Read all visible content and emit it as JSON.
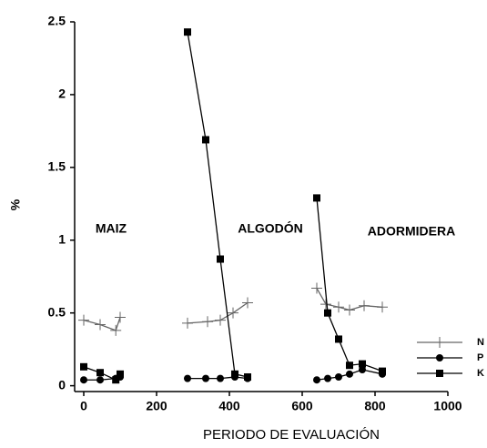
{
  "chart_data": {
    "type": "line",
    "xlabel": "PERIODO DE EVALUACIÓN",
    "ylabel": "%",
    "xlim": [
      -25,
      1000
    ],
    "ylim": [
      -0.04,
      2.5
    ],
    "xticks": [
      0,
      200,
      400,
      600,
      800,
      1000
    ],
    "yticks": [
      0,
      0.5,
      1,
      1.5,
      2,
      2.5
    ],
    "legend": "lower right",
    "annotations": [
      "MAIZ",
      "ALGODÓN",
      "ADORMIDERA"
    ],
    "series": [
      {
        "name": "N",
        "color": "#666666",
        "marker": "plus",
        "x": [
          0,
          45,
          88,
          100,
          null,
          285,
          340,
          375,
          410,
          450,
          null,
          640,
          665,
          700,
          730,
          770,
          820
        ],
        "values": [
          0.45,
          0.42,
          0.38,
          0.47,
          null,
          0.43,
          0.44,
          0.45,
          0.5,
          0.57,
          null,
          0.67,
          0.56,
          0.54,
          0.52,
          0.55,
          0.54
        ]
      },
      {
        "name": "P",
        "color": "#000000",
        "marker": "circle",
        "x": [
          0,
          45,
          88,
          100,
          null,
          285,
          335,
          375,
          415,
          450,
          null,
          640,
          670,
          700,
          730,
          765,
          820
        ],
        "values": [
          0.04,
          0.04,
          0.05,
          0.06,
          null,
          0.05,
          0.05,
          0.05,
          0.06,
          0.05,
          null,
          0.04,
          0.05,
          0.06,
          0.08,
          0.11,
          0.08
        ]
      },
      {
        "name": "K",
        "color": "#000000",
        "marker": "square",
        "x": [
          0,
          45,
          88,
          100,
          null,
          285,
          335,
          375,
          415,
          450,
          null,
          640,
          670,
          700,
          730,
          765,
          820
        ],
        "values": [
          0.13,
          0.09,
          0.04,
          0.08,
          null,
          2.43,
          1.69,
          0.87,
          0.08,
          0.06,
          null,
          1.29,
          0.5,
          0.32,
          0.14,
          0.15,
          0.1
        ]
      }
    ]
  }
}
